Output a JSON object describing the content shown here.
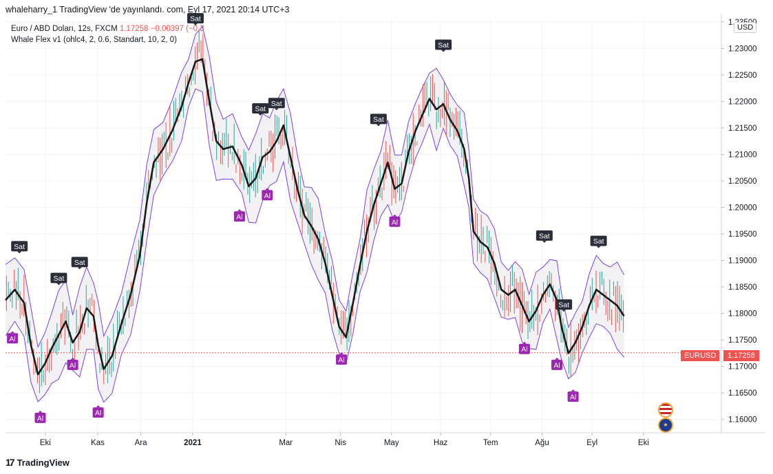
{
  "header": {
    "text": "whaleharry_1 TradingView 'de yayınlandı. com, Eyl 17, 2021 20:14 UTC+3"
  },
  "legend": {
    "symbol": "Euro / ABD Doları, 12s, FXCM",
    "price": "1.17258",
    "change": "−0.00397 (−0.3",
    "indicator": "Whale Flex v1 (ohlc4, 2, 0.6, Standart, 10, 2, 0)"
  },
  "axis": {
    "currency": "USD",
    "last_symbol": "EURUSD",
    "last_price": "1.17258"
  },
  "footer": {
    "brand": "TradingView",
    "logo": "17"
  },
  "colors": {
    "bull": "#26a69a",
    "bear": "#ef5350",
    "band": "#7b3fe4",
    "line": "#1a1a1a",
    "sell": "#2a2e39",
    "buy": "#9c27b0"
  },
  "chart_data": {
    "type": "line",
    "title": "",
    "ylim": [
      1.1575,
      1.2355
    ],
    "y_ticks": [
      "1.16000",
      "1.16500",
      "1.17000",
      "1.17500",
      "1.18000",
      "1.18500",
      "1.19000",
      "1.19500",
      "1.20000",
      "1.20500",
      "1.21000",
      "1.21500",
      "1.22000",
      "1.22500",
      "1.23000",
      "1.23500"
    ],
    "x_ticks": [
      {
        "label": "Eki",
        "t": 0.086
      },
      {
        "label": "Kas",
        "t": 0.199
      },
      {
        "label": "Ara",
        "t": 0.292
      },
      {
        "label": "2021",
        "t": 0.404,
        "bold": true
      },
      {
        "label": "Mar",
        "t": 0.605
      },
      {
        "label": "Nis",
        "t": 0.723
      },
      {
        "label": "May",
        "t": 0.833
      },
      {
        "label": "Haz",
        "t": 0.939
      },
      {
        "label": "Tem",
        "t": 1.047
      },
      {
        "label": "Ağu",
        "t": 1.158
      },
      {
        "label": "Eyl",
        "t": 1.266
      },
      {
        "label": "Eki",
        "t": 1.377
      }
    ],
    "x_range": [
      0,
      1.545
    ],
    "last_price": 1.17258,
    "series": [
      {
        "name": "Whale Flex v1",
        "points": [
          [
            0.0,
            1.1825
          ],
          [
            0.02,
            1.1845
          ],
          [
            0.04,
            1.182
          ],
          [
            0.055,
            1.174
          ],
          [
            0.07,
            1.1685
          ],
          [
            0.085,
            1.1705
          ],
          [
            0.1,
            1.1735
          ],
          [
            0.115,
            1.176
          ],
          [
            0.13,
            1.1785
          ],
          [
            0.145,
            1.1745
          ],
          [
            0.16,
            1.1765
          ],
          [
            0.175,
            1.181
          ],
          [
            0.19,
            1.1795
          ],
          [
            0.2,
            1.174
          ],
          [
            0.212,
            1.1695
          ],
          [
            0.23,
            1.172
          ],
          [
            0.25,
            1.178
          ],
          [
            0.27,
            1.1835
          ],
          [
            0.29,
            1.191
          ],
          [
            0.305,
            1.201
          ],
          [
            0.32,
            1.2085
          ],
          [
            0.34,
            1.211
          ],
          [
            0.36,
            1.2145
          ],
          [
            0.38,
            1.219
          ],
          [
            0.395,
            1.2235
          ],
          [
            0.41,
            1.2275
          ],
          [
            0.425,
            1.228
          ],
          [
            0.44,
            1.22
          ],
          [
            0.455,
            1.2125
          ],
          [
            0.47,
            1.211
          ],
          [
            0.49,
            1.2115
          ],
          [
            0.51,
            1.208
          ],
          [
            0.525,
            1.204
          ],
          [
            0.54,
            1.2055
          ],
          [
            0.555,
            1.2095
          ],
          [
            0.57,
            1.2105
          ],
          [
            0.585,
            1.2125
          ],
          [
            0.6,
            1.2155
          ],
          [
            0.615,
            1.2095
          ],
          [
            0.63,
            1.2035
          ],
          [
            0.645,
            1.1985
          ],
          [
            0.66,
            1.1965
          ],
          [
            0.675,
            1.194
          ],
          [
            0.69,
            1.1895
          ],
          [
            0.705,
            1.1835
          ],
          [
            0.72,
            1.1775
          ],
          [
            0.735,
            1.1755
          ],
          [
            0.75,
            1.182
          ],
          [
            0.765,
            1.189
          ],
          [
            0.78,
            1.1955
          ],
          [
            0.795,
            1.2005
          ],
          [
            0.81,
            1.2045
          ],
          [
            0.825,
            1.2085
          ],
          [
            0.84,
            1.2035
          ],
          [
            0.855,
            1.2045
          ],
          [
            0.87,
            1.2105
          ],
          [
            0.885,
            1.2145
          ],
          [
            0.9,
            1.2175
          ],
          [
            0.915,
            1.2205
          ],
          [
            0.93,
            1.2185
          ],
          [
            0.945,
            1.2195
          ],
          [
            0.96,
            1.2165
          ],
          [
            0.975,
            1.2145
          ],
          [
            0.99,
            1.211
          ],
          [
            1.0,
            1.2055
          ],
          [
            1.01,
            1.1955
          ],
          [
            1.025,
            1.1935
          ],
          [
            1.04,
            1.1925
          ],
          [
            1.055,
            1.1895
          ],
          [
            1.07,
            1.1845
          ],
          [
            1.085,
            1.1835
          ],
          [
            1.1,
            1.1845
          ],
          [
            1.115,
            1.1815
          ],
          [
            1.13,
            1.1785
          ],
          [
            1.145,
            1.1805
          ],
          [
            1.16,
            1.1835
          ],
          [
            1.175,
            1.1855
          ],
          [
            1.19,
            1.1825
          ],
          [
            1.2,
            1.1775
          ],
          [
            1.215,
            1.1725
          ],
          [
            1.23,
            1.1745
          ],
          [
            1.245,
            1.1775
          ],
          [
            1.26,
            1.1815
          ],
          [
            1.275,
            1.1845
          ],
          [
            1.29,
            1.1835
          ],
          [
            1.305,
            1.1825
          ],
          [
            1.32,
            1.1815
          ],
          [
            1.335,
            1.1795
          ]
        ]
      }
    ],
    "signals_sell": [
      [
        0.03,
        1.1925
      ],
      [
        0.115,
        1.1865
      ],
      [
        0.16,
        1.1895
      ],
      [
        0.41,
        1.2355
      ],
      [
        0.55,
        1.2185
      ],
      [
        0.585,
        1.2195
      ],
      [
        0.805,
        1.2165
      ],
      [
        0.945,
        1.2305
      ],
      [
        1.163,
        1.1945
      ],
      [
        1.205,
        1.1815
      ],
      [
        1.28,
        1.1935
      ]
    ],
    "signals_buy": [
      [
        0.015,
        1.1755
      ],
      [
        0.075,
        1.1605
      ],
      [
        0.145,
        1.1705
      ],
      [
        0.2,
        1.1615
      ],
      [
        0.505,
        1.1985
      ],
      [
        0.565,
        1.2025
      ],
      [
        0.725,
        1.1715
      ],
      [
        0.84,
        1.1975
      ],
      [
        1.12,
        1.1735
      ],
      [
        1.19,
        1.1705
      ],
      [
        1.225,
        1.1645
      ]
    ]
  }
}
